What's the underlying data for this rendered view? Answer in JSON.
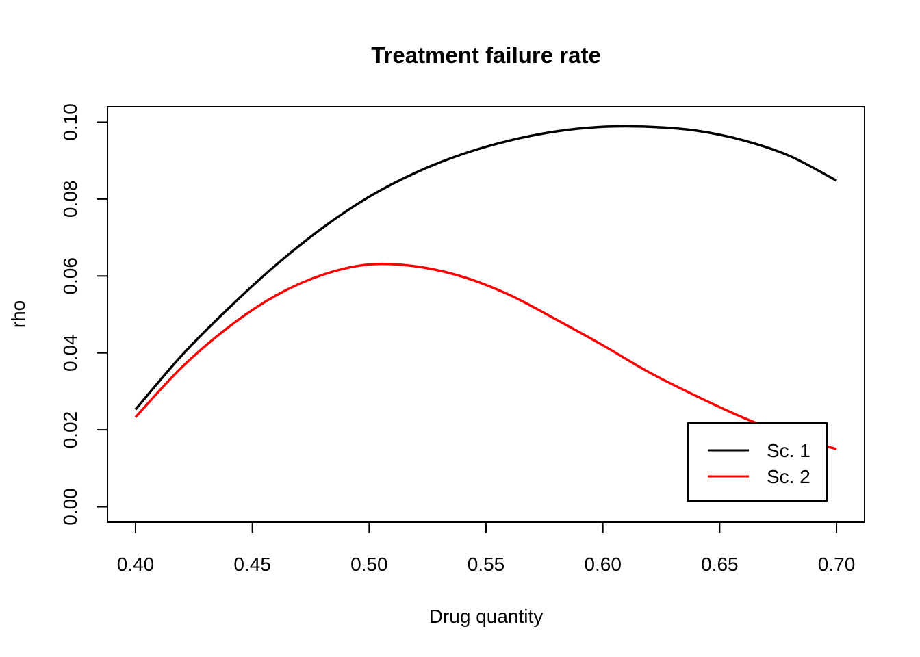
{
  "chart_data": {
    "type": "line",
    "title": "Treatment failure rate",
    "xlabel": "Drug quantity",
    "ylabel": "rho",
    "xlim": [
      0.388,
      0.712
    ],
    "ylim": [
      -0.004,
      0.104
    ],
    "xticks": [
      "0.40",
      "0.45",
      "0.50",
      "0.55",
      "0.60",
      "0.65",
      "0.70"
    ],
    "yticks": [
      "0.00",
      "0.02",
      "0.04",
      "0.06",
      "0.08",
      "0.10"
    ],
    "grid": false,
    "legend_position": "bottom-right",
    "x": [
      0.4,
      0.42,
      0.44,
      0.46,
      0.48,
      0.5,
      0.52,
      0.54,
      0.56,
      0.58,
      0.6,
      0.62,
      0.64,
      0.66,
      0.68,
      0.7
    ],
    "series": [
      {
        "name": "Sc. 1",
        "color": "#000000",
        "values": [
          0.0253,
          0.0395,
          0.0517,
          0.0628,
          0.0725,
          0.0806,
          0.0869,
          0.0917,
          0.0952,
          0.0976,
          0.0988,
          0.0988,
          0.0978,
          0.0953,
          0.0912,
          0.0848
        ]
      },
      {
        "name": "Sc. 2",
        "color": "#ff0000",
        "values": [
          0.0233,
          0.0364,
          0.0468,
          0.0549,
          0.0603,
          0.063,
          0.0625,
          0.0598,
          0.0551,
          0.0487,
          0.042,
          0.0349,
          0.0288,
          0.0232,
          0.0185,
          0.015
        ]
      }
    ]
  }
}
